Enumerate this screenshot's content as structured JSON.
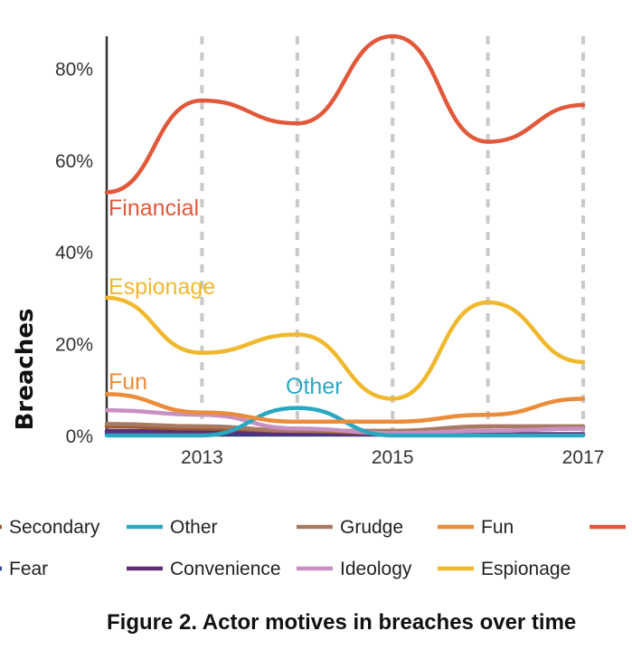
{
  "chart_data": {
    "type": "line",
    "x": [
      2012,
      2013,
      2014,
      2015,
      2016,
      2017
    ],
    "x_tick_labels": [
      "2013",
      "2015",
      "2017"
    ],
    "y_tick_labels": [
      "0%",
      "20%",
      "40%",
      "60%",
      "80%"
    ],
    "ylabel": "Breaches",
    "xlabel": "",
    "ylim": [
      0,
      0.87
    ],
    "xlim": [
      2012,
      2017
    ],
    "grid": "vertical dashed lines at each year",
    "legend_position": "bottom",
    "series": [
      {
        "name": "Financial",
        "color": "#e1583a",
        "values": [
          0.53,
          0.73,
          0.68,
          0.87,
          0.64,
          0.72
        ]
      },
      {
        "name": "Espionage",
        "color": "#f0b82d",
        "values": [
          0.3,
          0.18,
          0.22,
          0.08,
          0.29,
          0.16
        ]
      },
      {
        "name": "Fun",
        "color": "#ea8c3a",
        "values": [
          0.09,
          0.05,
          0.03,
          0.03,
          0.045,
          0.08
        ]
      },
      {
        "name": "Other",
        "color": "#2aa8c2",
        "values": [
          0.0,
          0.0,
          0.06,
          0.0,
          0.0,
          0.0
        ]
      },
      {
        "name": "Ideology",
        "color": "#c88fc2",
        "values": [
          0.055,
          0.045,
          0.015,
          0.005,
          0.01,
          0.015
        ]
      },
      {
        "name": "Grudge",
        "color": "#a97a63",
        "values": [
          0.025,
          0.02,
          0.01,
          0.01,
          0.02,
          0.02
        ]
      },
      {
        "name": "Secondary",
        "color": "#9c5a2f",
        "values": [
          0.02,
          0.015,
          0.01,
          0.005,
          0.01,
          0.015
        ]
      },
      {
        "name": "Convenience",
        "color": "#5c2f73",
        "values": [
          0.01,
          0.008,
          0.005,
          0.003,
          0.003,
          0.003
        ]
      },
      {
        "name": "Fear",
        "color": "#2f3fa8",
        "values": [
          0.005,
          0.004,
          0.003,
          0.002,
          0.002,
          0.002
        ]
      }
    ],
    "inline_labels": [
      "Financial",
      "Espionage",
      "Fun",
      "Other"
    ],
    "legend": [
      {
        "name": "Secondary",
        "color": "#9c5a2f"
      },
      {
        "name": "Other",
        "color": "#2aa8c2"
      },
      {
        "name": "Grudge",
        "color": "#a97a63"
      },
      {
        "name": "Fun",
        "color": "#ea8c3a"
      },
      {
        "name": "Financial",
        "color": "#e1583a"
      },
      {
        "name": "Fear",
        "color": "#2f3fa8"
      },
      {
        "name": "Convenience",
        "color": "#5c2f73"
      },
      {
        "name": "Ideology",
        "color": "#c88fc2"
      },
      {
        "name": "Espionage",
        "color": "#f0b82d"
      }
    ]
  },
  "caption": "Figure 2.  Actor motives in breaches over time"
}
